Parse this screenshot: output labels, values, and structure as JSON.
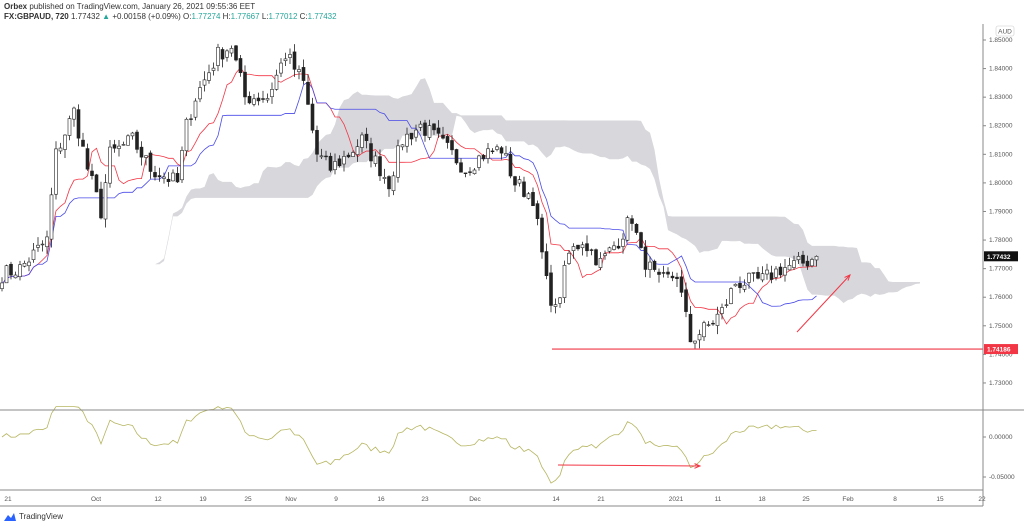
{
  "header": {
    "publisher": "Orbex",
    "published_text": "published on TradingView.com, January 26, 2021 09:55:36 EET",
    "symbol": "FX:GBPAUD, 720",
    "last": "1.77432",
    "change": "+0.00158 (+0.09%)",
    "o_label": "O:",
    "o": "1.77274",
    "h_label": "H:",
    "h": "1.77667",
    "l_label": "L:",
    "l": "1.77012",
    "c_label": "C:",
    "c": "1.77432"
  },
  "currency": "AUD",
  "brand": "TradingView",
  "colors": {
    "tenkan": "#f23645",
    "kijun": "#4a4ae8",
    "cloud": "#d7d7dc",
    "osc": "#b5b560",
    "annot": "#f23645"
  },
  "chart_data": [
    {
      "type": "candlestick",
      "title": "GBPAUD 720",
      "ylim": [
        1.725,
        1.852
      ],
      "yticks": [
        "1.85000",
        "1.84000",
        "1.83000",
        "1.82000",
        "1.81000",
        "1.80000",
        "1.79000",
        "1.78000",
        "1.77000",
        "1.76000",
        "1.75000",
        "1.74000",
        "1.73000"
      ],
      "xticks": [
        "21",
        "Oct",
        "12",
        "19",
        "25",
        "Nov",
        "9",
        "16",
        "23",
        "Dec",
        "14",
        "21",
        "2021",
        "11",
        "18",
        "25",
        "Feb",
        "8",
        "15",
        "22"
      ],
      "close_path": [
        [
          0,
          1.768
        ],
        [
          4,
          1.77
        ],
        [
          10,
          1.78
        ],
        [
          12,
          1.81
        ],
        [
          16,
          1.825
        ],
        [
          19,
          1.805
        ],
        [
          22,
          1.79
        ],
        [
          24,
          1.81
        ],
        [
          29,
          1.815
        ],
        [
          33,
          1.805
        ],
        [
          39,
          1.8
        ],
        [
          41,
          1.82
        ],
        [
          43,
          1.83
        ],
        [
          48,
          1.845
        ],
        [
          51,
          1.848
        ],
        [
          54,
          1.83
        ],
        [
          59,
          1.83
        ],
        [
          63,
          1.845
        ],
        [
          67,
          1.835
        ],
        [
          70,
          1.81
        ],
        [
          73,
          1.805
        ],
        [
          77,
          1.81
        ],
        [
          80,
          1.815
        ],
        [
          86,
          1.8
        ],
        [
          89,
          1.815
        ],
        [
          93,
          1.82
        ],
        [
          97,
          1.815
        ],
        [
          103,
          1.805
        ],
        [
          107,
          1.81
        ],
        [
          111,
          1.812
        ],
        [
          114,
          1.8
        ],
        [
          118,
          1.795
        ],
        [
          121,
          1.765
        ],
        [
          123,
          1.755
        ],
        [
          126,
          1.775
        ],
        [
          129,
          1.78
        ],
        [
          133,
          1.772
        ],
        [
          137,
          1.78
        ],
        [
          140,
          1.788
        ],
        [
          142,
          1.775
        ],
        [
          146,
          1.765
        ],
        [
          150,
          1.768
        ],
        [
          153,
          1.745
        ],
        [
          157,
          1.75
        ],
        [
          160,
          1.755
        ],
        [
          163,
          1.765
        ],
        [
          169,
          1.766
        ],
        [
          173,
          1.77
        ],
        [
          178,
          1.772
        ],
        [
          181,
          1.77432
        ]
      ],
      "indicators": [
        "Ichimoku Tenkan",
        "Ichimoku Kijun",
        "Ichimoku Cloud"
      ],
      "last_price_label": "1.77432",
      "support_level": 1.74186,
      "support_label": "1.74186"
    },
    {
      "type": "line",
      "name": "oscillator",
      "yticks": [
        "0.00000",
        "-0.05000"
      ],
      "ylim": [
        -0.06,
        0.04
      ]
    }
  ]
}
